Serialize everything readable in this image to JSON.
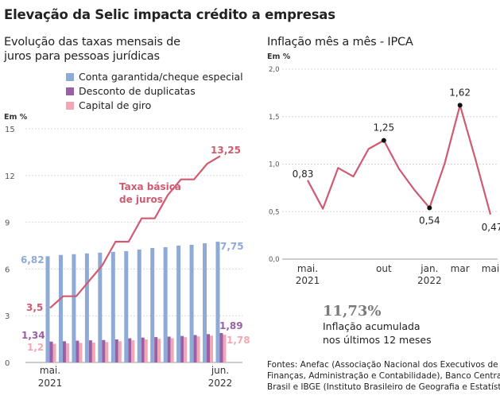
{
  "title": "Elevação da Selic impacta crédito a empresas",
  "left_subtitle_lines": [
    "Evolução das taxas mensais de",
    "juros para pessoas jurídicas"
  ],
  "right_subtitle": "Inflação mês a mês - IPCA",
  "accumulated": {
    "value": "11,73%",
    "label_lines": [
      "Inflação acumulada",
      "nos últimos 12 meses"
    ]
  },
  "source_lines": [
    "Fontes: Anefac (Associação Nacional dos Executivos de",
    "Finanças, Administração e Contabilidade), Banco Central do",
    "Brasil e IBGE (Instituto Brasileiro de Geografia e Estatística)"
  ],
  "colors": {
    "conta_garantida": "#8eaad6",
    "desconto_duplicatas": "#9b5fa5",
    "capital_giro": "#f2a7b4",
    "selic_line": "#d05a70",
    "ipca_line": "#d05a70",
    "grid": "#d7d7d7",
    "axis_text": "#555555"
  },
  "chart_data": [
    {
      "type": "bar",
      "unit_label": "Em %",
      "ylim": [
        0,
        15
      ],
      "yticks": [
        0,
        3,
        6,
        9,
        12,
        15
      ],
      "grid": true,
      "legend_position": "top",
      "x_labels": [
        {
          "index": 0,
          "lines": [
            "mai.",
            "2021"
          ]
        },
        {
          "index": 13,
          "lines": [
            "jun.",
            "2022"
          ]
        }
      ],
      "series": [
        {
          "name": "Conta garantida/cheque especial",
          "color_key": "conta_garantida",
          "values": [
            6.82,
            6.9,
            6.95,
            7.0,
            7.05,
            7.1,
            7.15,
            7.25,
            7.35,
            7.4,
            7.5,
            7.55,
            7.65,
            7.75
          ]
        },
        {
          "name": "Desconto de duplicatas",
          "color_key": "desconto_duplicatas",
          "values": [
            1.34,
            1.36,
            1.4,
            1.42,
            1.44,
            1.48,
            1.55,
            1.6,
            1.63,
            1.66,
            1.7,
            1.76,
            1.82,
            1.89
          ]
        },
        {
          "name": "Capital de giro",
          "color_key": "capital_giro",
          "values": [
            1.2,
            1.22,
            1.26,
            1.28,
            1.31,
            1.36,
            1.42,
            1.48,
            1.52,
            1.56,
            1.62,
            1.67,
            1.72,
            1.78
          ]
        }
      ],
      "overlay_line": {
        "name": "Taxa básica de juros",
        "label_lines": [
          "Taxa básica",
          "de juros"
        ],
        "color_key": "selic_line",
        "values": [
          3.5,
          4.25,
          4.25,
          5.25,
          6.25,
          7.75,
          7.75,
          9.25,
          9.25,
          10.75,
          11.75,
          11.75,
          12.75,
          13.25
        ]
      },
      "data_labels": [
        {
          "text": "6,82",
          "series": "Conta garantida/cheque especial",
          "index": 0
        },
        {
          "text": "7,75",
          "series": "Conta garantida/cheque especial",
          "index": 13
        },
        {
          "text": "1,34",
          "series": "Desconto de duplicatas",
          "index": 0
        },
        {
          "text": "1,89",
          "series": "Desconto de duplicatas",
          "index": 13
        },
        {
          "text": "1,2",
          "series": "Capital de giro",
          "index": 0
        },
        {
          "text": "1,78",
          "series": "Capital de giro",
          "index": 13
        },
        {
          "text": "3,5",
          "series": "Taxa básica de juros",
          "index": 0
        },
        {
          "text": "13,25",
          "series": "Taxa básica de juros",
          "index": 13
        }
      ]
    },
    {
      "type": "line",
      "unit_label": "Em %",
      "ylim": [
        0,
        2.0
      ],
      "yticks": [
        {
          "value": 0,
          "label": "0,0"
        },
        {
          "value": 0.5,
          "label": "0,5"
        },
        {
          "value": 1.0,
          "label": "1,0"
        },
        {
          "value": 1.5,
          "label": "1,5"
        },
        {
          "value": 2.0,
          "label": "2,0"
        }
      ],
      "grid": true,
      "x_labels": [
        {
          "index": 0,
          "lines": [
            "mai.",
            "2021"
          ]
        },
        {
          "index": 5,
          "lines": [
            "out"
          ]
        },
        {
          "index": 8,
          "lines": [
            "jan.",
            "2022"
          ]
        },
        {
          "index": 10,
          "lines": [
            "mar"
          ]
        },
        {
          "index": 12,
          "lines": [
            "mai"
          ]
        }
      ],
      "series": [
        {
          "name": "IPCA",
          "color_key": "ipca_line",
          "values": [
            0.83,
            0.53,
            0.96,
            0.87,
            1.16,
            1.25,
            0.95,
            0.73,
            0.54,
            1.01,
            1.62,
            1.06,
            0.47
          ]
        }
      ],
      "data_labels": [
        {
          "text": "0,83",
          "index": 0,
          "marker": false
        },
        {
          "text": "1,25",
          "index": 5,
          "marker": true
        },
        {
          "text": "0,54",
          "index": 8,
          "marker": true
        },
        {
          "text": "1,62",
          "index": 10,
          "marker": true
        },
        {
          "text": "0,47",
          "index": 12,
          "marker": false
        }
      ]
    }
  ]
}
